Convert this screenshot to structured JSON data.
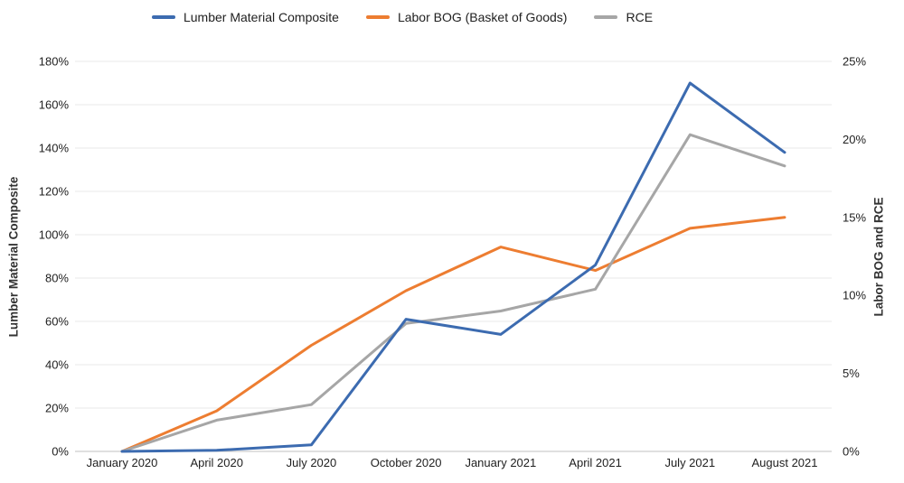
{
  "chart_data": {
    "type": "line",
    "categories": [
      "January 2020",
      "April 2020",
      "July 2020",
      "October 2020",
      "January 2021",
      "April 2021",
      "July 2021",
      "August 2021"
    ],
    "series": [
      {
        "name": "Lumber Material Composite",
        "axis": "left",
        "color": "#3C6BB0",
        "values": [
          0,
          0.5,
          3,
          61,
          54,
          86,
          170,
          138
        ]
      },
      {
        "name": "Labor BOG (Basket of Goods)",
        "axis": "right",
        "color": "#ED7D31",
        "values": [
          0,
          2.6,
          6.8,
          10.3,
          13.1,
          11.6,
          14.3,
          15.0
        ]
      },
      {
        "name": "RCE",
        "axis": "right",
        "color": "#A6A6A6",
        "values": [
          0,
          2.0,
          3.0,
          8.2,
          9.0,
          10.4,
          20.3,
          18.3
        ]
      }
    ],
    "left_axis": {
      "label": "Lumber Material Composite",
      "min": 0,
      "max": 180,
      "step": 20,
      "tick_suffix": "%"
    },
    "right_axis": {
      "label": "Labor BOG and RCE",
      "min": 0,
      "max": 25,
      "step": 5,
      "tick_suffix": "%"
    },
    "grid": "horizontal",
    "legend_position": "top",
    "colors": {
      "gridline": "#E8E8E8",
      "axis_line": "#C2C2C2",
      "text": "#212121"
    }
  }
}
